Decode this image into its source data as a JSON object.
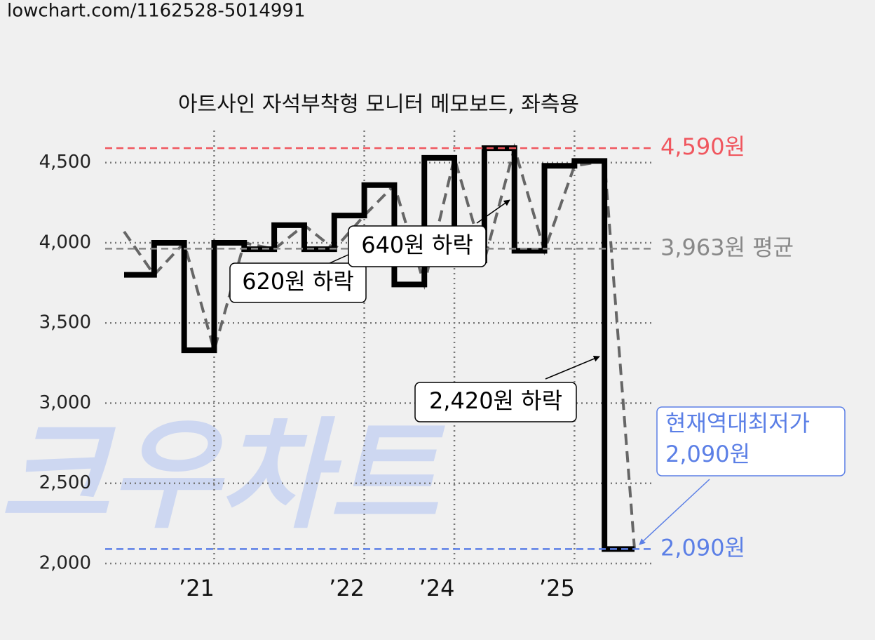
{
  "source_url": "lowchart.com/1162528-5014991",
  "watermark": "크우차트",
  "chart_data": {
    "type": "step-line",
    "title": "아트사인 자석부착형 모니터 메모보드, 좌측용",
    "categories": [
      null,
      null,
      null,
      "’21",
      null,
      null,
      null,
      null,
      "’22",
      null,
      null,
      "’24",
      null,
      null,
      null,
      "’25",
      null,
      null
    ],
    "series": [
      {
        "style": "step",
        "color": "#000000",
        "values": [
          3800,
          4000,
          3330,
          4000,
          3960,
          4110,
          3960,
          4170,
          4360,
          3740,
          4530,
          3890,
          4590,
          3950,
          4480,
          4510,
          2090,
          2090
        ]
      },
      {
        "style": "dashed",
        "color": "#666666",
        "values": [
          4070,
          3800,
          4000,
          3330,
          4000,
          3960,
          4110,
          3960,
          4170,
          4360,
          3740,
          4530,
          3890,
          4590,
          3950,
          4480,
          4510,
          2090
        ]
      }
    ],
    "ylim": [
      2000,
      4700
    ],
    "yticks": [
      {
        "value": 2000,
        "label": "2,000"
      },
      {
        "value": 2500,
        "label": "2,500"
      },
      {
        "value": 3000,
        "label": "3,000"
      },
      {
        "value": 3500,
        "label": "3,500"
      },
      {
        "value": 4000,
        "label": "4,000"
      },
      {
        "value": 4500,
        "label": "4,500"
      }
    ],
    "grid": true,
    "reference_lines": [
      {
        "value": 4590,
        "label": "4,590원",
        "color": "#f0565e"
      },
      {
        "value": 3963,
        "label": "3,963원 평균",
        "color": "#888888"
      },
      {
        "value": 2090,
        "label": "2,090원",
        "color": "#5b7fe6"
      }
    ],
    "annotations": [
      {
        "text": "620원 하락"
      },
      {
        "text": "640원 하락"
      },
      {
        "text": "2,420원 하락"
      },
      {
        "lines": [
          "현재역대최저가",
          "2,090원"
        ],
        "color": "#5b7fe6"
      }
    ]
  }
}
